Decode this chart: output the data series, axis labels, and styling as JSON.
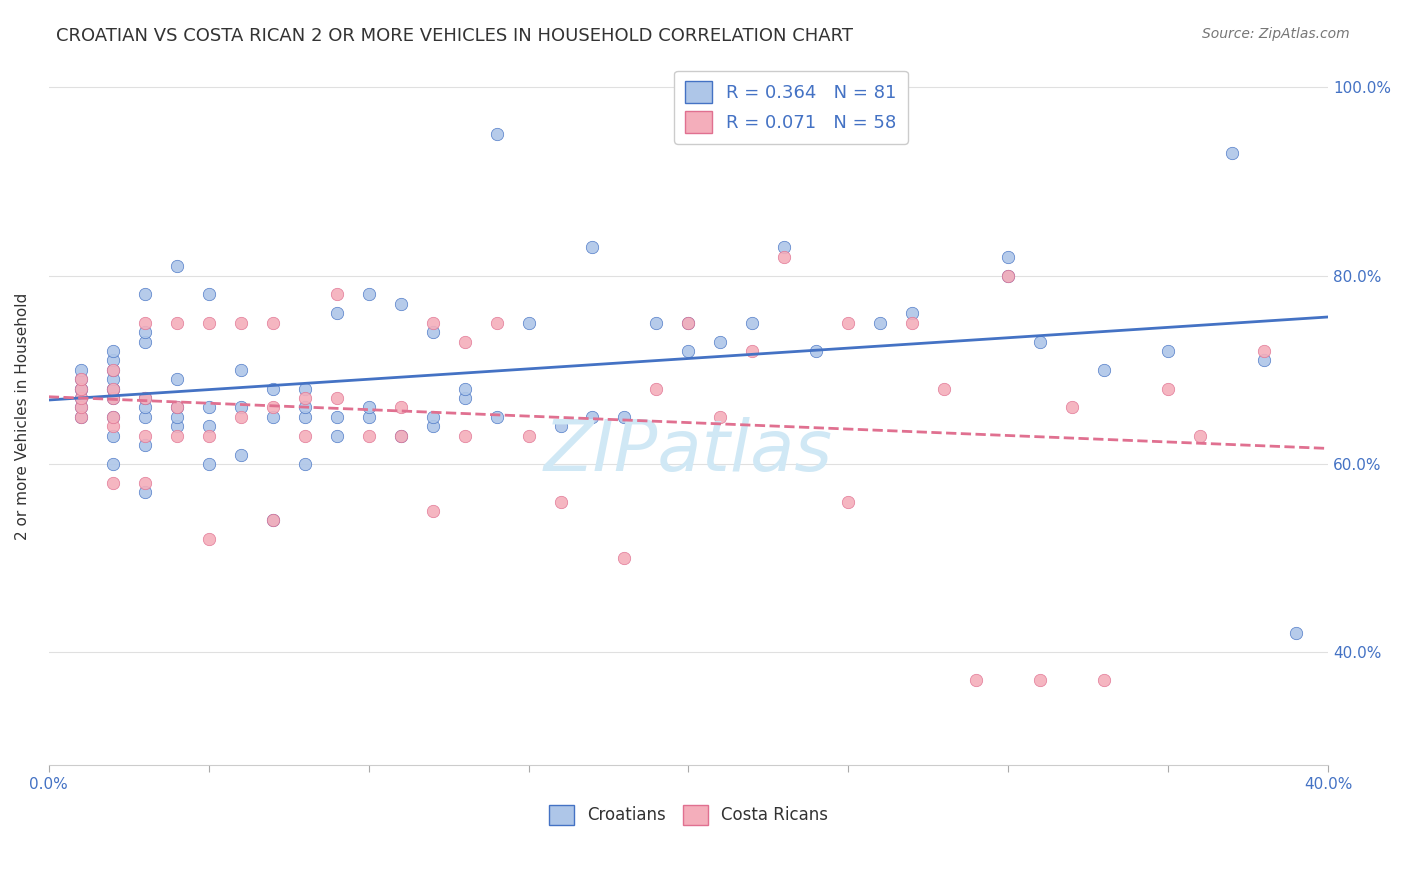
{
  "title": "CROATIAN VS COSTA RICAN 2 OR MORE VEHICLES IN HOUSEHOLD CORRELATION CHART",
  "source": "Source: ZipAtlas.com",
  "ylabel": "2 or more Vehicles in Household",
  "legend_croatians": "Croatians",
  "legend_costa_ricans": "Costa Ricans",
  "r_croatian": 0.364,
  "n_croatian": 81,
  "r_costa_rican": 0.071,
  "n_costa_rican": 58,
  "color_croatian": "#AEC6E8",
  "color_costa_rican": "#F4AEBB",
  "color_line_croatian": "#4472C4",
  "color_line_costa_rican": "#E07090",
  "xmin": 0.0,
  "xmax": 0.4,
  "ymin": 0.28,
  "ymax": 1.02,
  "yticks": [
    0.4,
    0.6,
    0.8,
    1.0
  ],
  "ytick_labels": [
    "40.0%",
    "60.0%",
    "80.0%",
    "100.0%"
  ],
  "xticks": [
    0.0,
    0.05,
    0.1,
    0.15,
    0.2,
    0.25,
    0.3,
    0.35,
    0.4
  ],
  "xtick_labels": [
    "0.0%",
    "",
    "",
    "",
    "",
    "",
    "",
    "",
    "40.0%"
  ],
  "croatian_x": [
    0.01,
    0.01,
    0.01,
    0.01,
    0.01,
    0.01,
    0.01,
    0.02,
    0.02,
    0.02,
    0.02,
    0.02,
    0.02,
    0.02,
    0.02,
    0.02,
    0.02,
    0.03,
    0.03,
    0.03,
    0.03,
    0.03,
    0.03,
    0.03,
    0.03,
    0.04,
    0.04,
    0.04,
    0.04,
    0.04,
    0.05,
    0.05,
    0.05,
    0.05,
    0.06,
    0.06,
    0.06,
    0.07,
    0.07,
    0.07,
    0.08,
    0.08,
    0.08,
    0.08,
    0.09,
    0.09,
    0.09,
    0.1,
    0.1,
    0.1,
    0.11,
    0.11,
    0.12,
    0.12,
    0.12,
    0.13,
    0.13,
    0.14,
    0.14,
    0.15,
    0.16,
    0.17,
    0.17,
    0.18,
    0.19,
    0.2,
    0.2,
    0.21,
    0.22,
    0.23,
    0.24,
    0.26,
    0.27,
    0.3,
    0.3,
    0.31,
    0.33,
    0.35,
    0.37,
    0.38,
    0.39
  ],
  "croatian_y": [
    0.65,
    0.66,
    0.67,
    0.68,
    0.68,
    0.69,
    0.7,
    0.6,
    0.63,
    0.65,
    0.67,
    0.68,
    0.68,
    0.69,
    0.7,
    0.71,
    0.72,
    0.57,
    0.62,
    0.65,
    0.66,
    0.67,
    0.73,
    0.74,
    0.78,
    0.64,
    0.65,
    0.66,
    0.69,
    0.81,
    0.6,
    0.64,
    0.66,
    0.78,
    0.61,
    0.66,
    0.7,
    0.54,
    0.65,
    0.68,
    0.6,
    0.65,
    0.66,
    0.68,
    0.63,
    0.65,
    0.76,
    0.65,
    0.66,
    0.78,
    0.63,
    0.77,
    0.64,
    0.65,
    0.74,
    0.67,
    0.68,
    0.65,
    0.95,
    0.75,
    0.64,
    0.65,
    0.83,
    0.65,
    0.75,
    0.72,
    0.75,
    0.73,
    0.75,
    0.83,
    0.72,
    0.75,
    0.76,
    0.8,
    0.82,
    0.73,
    0.7,
    0.72,
    0.93,
    0.71,
    0.42
  ],
  "costa_rican_x": [
    0.01,
    0.01,
    0.01,
    0.01,
    0.01,
    0.02,
    0.02,
    0.02,
    0.02,
    0.02,
    0.02,
    0.03,
    0.03,
    0.03,
    0.03,
    0.04,
    0.04,
    0.04,
    0.05,
    0.05,
    0.05,
    0.06,
    0.06,
    0.07,
    0.07,
    0.07,
    0.08,
    0.08,
    0.09,
    0.09,
    0.1,
    0.11,
    0.11,
    0.12,
    0.12,
    0.13,
    0.13,
    0.14,
    0.15,
    0.16,
    0.18,
    0.19,
    0.2,
    0.21,
    0.22,
    0.23,
    0.25,
    0.25,
    0.27,
    0.28,
    0.29,
    0.3,
    0.31,
    0.32,
    0.33,
    0.35,
    0.36,
    0.38
  ],
  "costa_rican_y": [
    0.65,
    0.66,
    0.67,
    0.68,
    0.69,
    0.58,
    0.64,
    0.65,
    0.67,
    0.68,
    0.7,
    0.58,
    0.63,
    0.67,
    0.75,
    0.63,
    0.66,
    0.75,
    0.52,
    0.63,
    0.75,
    0.65,
    0.75,
    0.54,
    0.66,
    0.75,
    0.63,
    0.67,
    0.67,
    0.78,
    0.63,
    0.63,
    0.66,
    0.55,
    0.75,
    0.63,
    0.73,
    0.75,
    0.63,
    0.56,
    0.5,
    0.68,
    0.75,
    0.65,
    0.72,
    0.82,
    0.56,
    0.75,
    0.75,
    0.68,
    0.37,
    0.8,
    0.37,
    0.66,
    0.37,
    0.68,
    0.63,
    0.72
  ],
  "watermark": "ZIPatlas",
  "watermark_color": "#D0E8F5",
  "background_color": "#FFFFFF",
  "grid_color": "#E0E0E0"
}
